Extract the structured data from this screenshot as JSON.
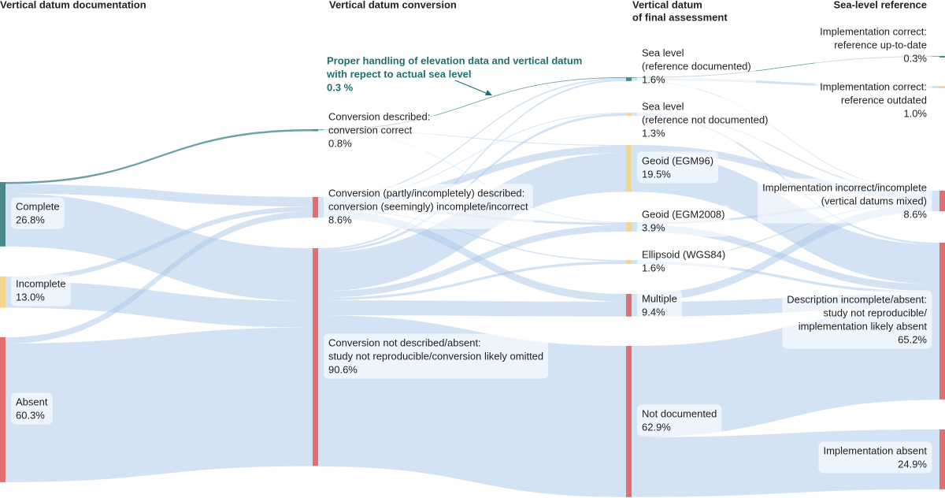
{
  "chart_data": {
    "type": "sankey",
    "link_color": "#a9c8ea",
    "annotation": {
      "lines": [
        "Proper handling of elevation data and vertical datum",
        "with repect to actual sea level",
        "0.3 %"
      ]
    },
    "columns": [
      {
        "title_lines": [
          "Vertical datum documentation"
        ],
        "nodes": [
          {
            "label_lines": [
              "Complete"
            ],
            "value": 26.8,
            "value_label": "26.8%",
            "color": "#4a8a8a",
            "outflows": [
              {
                "to": 0,
                "value": 0.8,
                "color": "#4a8a8a"
              },
              {
                "to": 1,
                "value": 4.0
              },
              {
                "to": 2,
                "value": 22.0
              }
            ]
          },
          {
            "label_lines": [
              "Incomplete"
            ],
            "value": 13.0,
            "value_label": "13.0%",
            "color": "#f5d58c",
            "outflows": [
              {
                "to": 1,
                "value": 2.0
              },
              {
                "to": 2,
                "value": 11.0
              }
            ]
          },
          {
            "label_lines": [
              "Absent"
            ],
            "value": 60.3,
            "value_label": "60.3%",
            "color": "#e07070",
            "outflows": [
              {
                "to": 1,
                "value": 2.6
              },
              {
                "to": 2,
                "value": 57.7
              }
            ]
          }
        ]
      },
      {
        "title_lines": [
          "Vertical datum conversion"
        ],
        "nodes": [
          {
            "label_lines": [
              "Conversion described:",
              "conversion correct"
            ],
            "value": 0.8,
            "value_label": "0.8%",
            "color": "#4a8a8a",
            "outflows": [
              {
                "to": 0,
                "value": 0.3,
                "color": "#4a8a8a"
              },
              {
                "to": 2,
                "value": 0.3
              },
              {
                "to": 3,
                "value": 0.2
              }
            ]
          },
          {
            "label_lines": [
              "Conversion (partly/incompletely) described:",
              "conversion (seemingly) incomplete/incorrect"
            ],
            "value": 8.6,
            "value_label": "8.6%",
            "color": "#e07070",
            "outflows": [
              {
                "to": 0,
                "value": 0.6
              },
              {
                "to": 1,
                "value": 0.3
              },
              {
                "to": 2,
                "value": 3.0
              },
              {
                "to": 3,
                "value": 1.0
              },
              {
                "to": 4,
                "value": 0.5
              },
              {
                "to": 5,
                "value": 3.2
              }
            ]
          },
          {
            "label_lines": [
              "Conversion not described/absent:",
              "study not reproducible/conversion likely omitted"
            ],
            "value": 90.6,
            "value_label": "90.6%",
            "color": "#e07070",
            "outflows": [
              {
                "to": 0,
                "value": 0.7
              },
              {
                "to": 1,
                "value": 1.0
              },
              {
                "to": 2,
                "value": 16.2
              },
              {
                "to": 3,
                "value": 2.7
              },
              {
                "to": 4,
                "value": 1.1
              },
              {
                "to": 5,
                "value": 6.2
              },
              {
                "to": 6,
                "value": 62.9
              }
            ]
          }
        ]
      },
      {
        "title_lines": [
          "Vertical datum",
          "of final assessment"
        ],
        "nodes": [
          {
            "label_lines": [
              "Sea level",
              "(reference documented)"
            ],
            "value": 1.6,
            "value_label": "1.6%",
            "color": "#4a8a8a",
            "outflows": [
              {
                "to": 0,
                "value": 0.3,
                "color": "#4a8a8a"
              },
              {
                "to": 1,
                "value": 1.0
              },
              {
                "to": 2,
                "value": 0.3
              }
            ]
          },
          {
            "label_lines": [
              "Sea level",
              "(reference not documented)"
            ],
            "value": 1.3,
            "value_label": "1.3%",
            "color": "#f5d58c",
            "outflows": [
              {
                "to": 2,
                "value": 0.5
              },
              {
                "to": 3,
                "value": 0.8
              }
            ]
          },
          {
            "label_lines": [
              "Geoid (EGM96)"
            ],
            "value": 19.5,
            "value_label": "19.5%",
            "color": "#f5d58c",
            "outflows": [
              {
                "to": 2,
                "value": 3.0
              },
              {
                "to": 3,
                "value": 16.5
              }
            ]
          },
          {
            "label_lines": [
              "Geoid (EGM2008)"
            ],
            "value": 3.9,
            "value_label": "3.9%",
            "color": "#f5d58c",
            "outflows": [
              {
                "to": 2,
                "value": 1.0
              },
              {
                "to": 3,
                "value": 2.9
              }
            ]
          },
          {
            "label_lines": [
              "Ellipsoid (WGS84)"
            ],
            "value": 1.6,
            "value_label": "1.6%",
            "color": "#f5d58c",
            "outflows": [
              {
                "to": 2,
                "value": 0.5
              },
              {
                "to": 3,
                "value": 1.1
              }
            ]
          },
          {
            "label_lines": [
              "Multiple"
            ],
            "value": 9.4,
            "value_label": "9.4%",
            "color": "#e07070",
            "outflows": [
              {
                "to": 2,
                "value": 3.3
              },
              {
                "to": 3,
                "value": 6.1
              }
            ]
          },
          {
            "label_lines": [
              "Not documented"
            ],
            "value": 62.9,
            "value_label": "62.9%",
            "color": "#e07070",
            "outflows": [
              {
                "to": 3,
                "value": 38.0
              },
              {
                "to": 4,
                "value": 24.9
              }
            ]
          }
        ]
      },
      {
        "title_lines": [
          "Sea-level reference"
        ],
        "nodes": [
          {
            "label_lines": [
              "Implementation correct:",
              "reference up-to-date"
            ],
            "value": 0.3,
            "value_label": "0.3%",
            "color": "#4a8a8a"
          },
          {
            "label_lines": [
              "Implementation correct:",
              "reference outdated"
            ],
            "value": 1.0,
            "value_label": "1.0%",
            "color": "#f5d58c"
          },
          {
            "label_lines": [
              "Implementation incorrect/incomplete",
              "(vertical datums mixed)"
            ],
            "value": 8.6,
            "value_label": "8.6%",
            "color": "#e07070"
          },
          {
            "label_lines": [
              "Description incomplete/absent:",
              "study not reproducible/",
              "implementation likely absent"
            ],
            "value": 65.2,
            "value_label": "65.2%",
            "color": "#e07070"
          },
          {
            "label_lines": [
              "Implementation absent"
            ],
            "value": 24.9,
            "value_label": "24.9%",
            "color": "#e07070"
          }
        ]
      }
    ]
  }
}
